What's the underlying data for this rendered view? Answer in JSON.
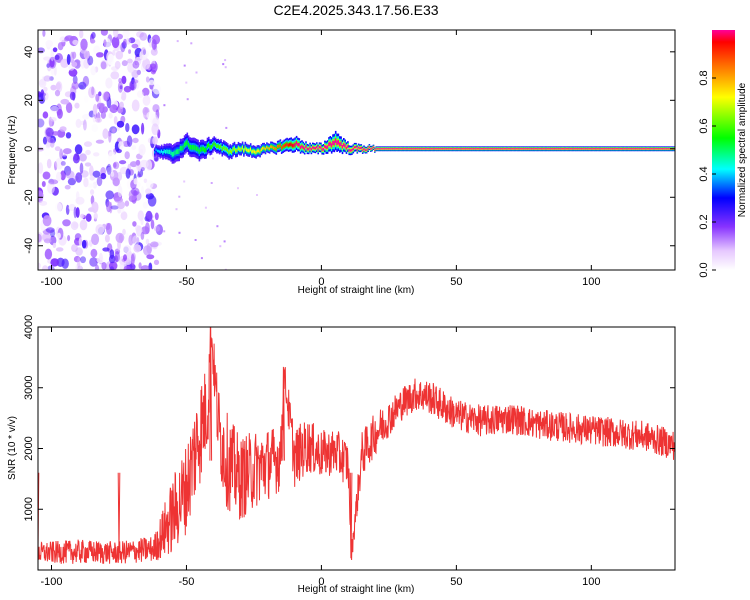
{
  "title": "C2E4.2025.343.17.56.E33",
  "chart_data": [
    {
      "type": "heatmap",
      "xlabel": "Height of straight line (km)",
      "ylabel": "Frequency (Hz)",
      "xlim": [
        -105,
        131
      ],
      "ylim": [
        -50,
        49
      ],
      "xticks": [
        -100,
        -50,
        0,
        50,
        100
      ],
      "yticks": [
        -40,
        -20,
        0,
        20,
        40
      ],
      "noise_region_x": [
        -105,
        -60
      ],
      "noise_level": [
        0.0,
        0.25
      ],
      "signal_ridge": {
        "x": [
          -62,
          -55,
          -50,
          -45,
          -40,
          -35,
          -30,
          -25,
          -20,
          -15,
          -10,
          -5,
          0,
          5,
          10,
          15,
          20,
          131
        ],
        "frequency": [
          -1,
          -2,
          2,
          -1,
          2,
          -1,
          0,
          -1,
          0,
          1,
          2,
          0,
          0,
          3,
          0,
          0,
          0,
          0
        ],
        "halfwidth": [
          2,
          4,
          4,
          4,
          3,
          3,
          2.5,
          2.5,
          2,
          2.5,
          3,
          2,
          2,
          4,
          2,
          1.5,
          1,
          1
        ],
        "amplitude": [
          0.2,
          0.3,
          0.35,
          0.35,
          0.4,
          0.45,
          0.5,
          0.55,
          0.6,
          0.7,
          0.8,
          0.9,
          0.95,
          0.85,
          0.95,
          1.0,
          1.0,
          1.0
        ]
      },
      "colorbar": {
        "label": "Normalized spectral amplitude",
        "range": [
          0,
          1
        ],
        "ticks": [
          "0.0",
          "0.2",
          "0.4",
          "0.6",
          "0.8"
        ]
      }
    },
    {
      "type": "line",
      "xlabel": "Height of straight line (km)",
      "ylabel": "SNR (10 * v/v)",
      "xlim": [
        -105,
        131
      ],
      "ylim": [
        0,
        4000
      ],
      "xticks": [
        -100,
        -50,
        0,
        50,
        100
      ],
      "yticks": [
        1000,
        2000,
        3000,
        4000
      ],
      "color": "#ee3333",
      "series": [
        {
          "x": [
            -105,
            -90,
            -75,
            -62,
            -55,
            -50,
            -45,
            -42,
            -41,
            -38,
            -35,
            -30,
            -25,
            -20,
            -15,
            -14,
            -10,
            -5,
            0,
            5,
            10,
            11,
            15,
            20,
            25,
            30,
            35,
            40,
            45,
            50,
            60,
            70,
            80,
            90,
            100,
            110,
            120,
            131
          ],
          "values": [
            280,
            300,
            280,
            350,
            900,
            1350,
            2300,
            2700,
            4000,
            2300,
            1800,
            1500,
            1650,
            1750,
            1850,
            3300,
            1850,
            2050,
            1900,
            1950,
            1750,
            220,
            1900,
            2250,
            2500,
            2750,
            2900,
            2850,
            2700,
            2550,
            2450,
            2500,
            2400,
            2350,
            2300,
            2250,
            2200,
            2050
          ],
          "amplitude": [
            180,
            200,
            190,
            220,
            650,
            750,
            900,
            700,
            250,
            750,
            800,
            700,
            650,
            600,
            550,
            250,
            500,
            450,
            400,
            380,
            400,
            150,
            380,
            350,
            300,
            280,
            280,
            280,
            280,
            260,
            260,
            260,
            250,
            250,
            250,
            250,
            250,
            250
          ]
        }
      ]
    }
  ]
}
